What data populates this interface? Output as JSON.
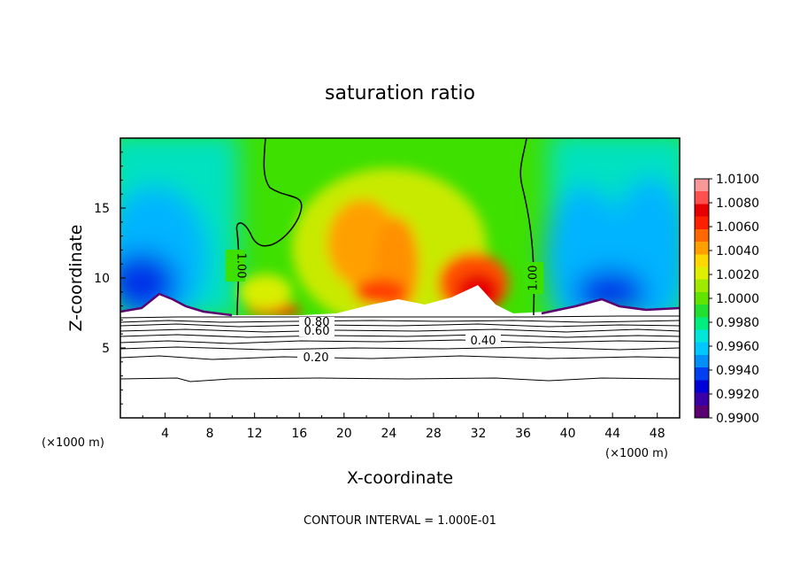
{
  "chart_data": {
    "type": "heatmap",
    "title": "saturation ratio",
    "xlabel": "X-coordinate",
    "ylabel": "Z-coordinate",
    "x_unit": "(×1000 m)",
    "y_unit": "(×1000 m)",
    "xlim": [
      0,
      50
    ],
    "ylim": [
      0,
      20
    ],
    "x_ticks": [
      4,
      8,
      12,
      16,
      20,
      24,
      28,
      32,
      36,
      40,
      44,
      48
    ],
    "y_ticks": [
      5,
      10,
      15
    ],
    "colorbar": {
      "min": 0.99,
      "max": 1.01,
      "labels": [
        "1.0100",
        "1.0080",
        "1.0060",
        "1.0040",
        "1.0020",
        "1.0000",
        "0.9980",
        "0.9960",
        "0.9940",
        "0.9920",
        "0.9900"
      ],
      "colors": [
        "#5a0070",
        "#3a00a8",
        "#0000d8",
        "#0040f0",
        "#0090f8",
        "#00c8ff",
        "#00e6d8",
        "#00ee80",
        "#22e030",
        "#60e400",
        "#a0ea00",
        "#e0ee00",
        "#ffd800",
        "#ffa000",
        "#ff6800",
        "#ff2000",
        "#e80000",
        "#ff5050",
        "#f89898"
      ]
    },
    "contour_labels": [
      "1.00",
      "1.00",
      "0.80",
      "0.60",
      "0.40",
      "0.20"
    ],
    "contour_interval_note": "CONTOUR INTERVAL =  1.000E-01"
  }
}
